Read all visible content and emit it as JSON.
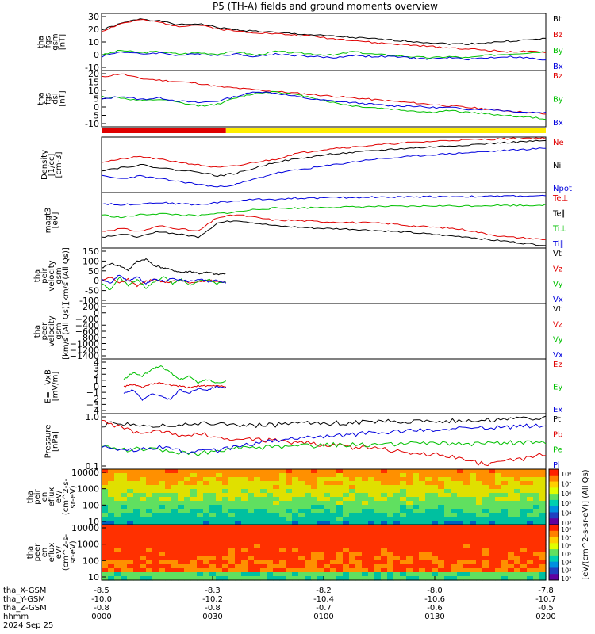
{
  "title": "P5 (TH-A) fields and ground moments overview",
  "colors": {
    "black": "#000000",
    "red": "#e00000",
    "green": "#00c000",
    "blue": "#0000dd",
    "yellow": "#ffee00"
  },
  "chart_data": [
    {
      "type": "line",
      "panel": "fgs-gsm",
      "ylabel": [
        "tha",
        "fgs",
        "gsm",
        "[nT]"
      ],
      "ylim": [
        -10,
        35
      ],
      "ticks": [
        "30",
        "20",
        "10",
        "0",
        "-10"
      ],
      "series": [
        {
          "name": "Bt",
          "color": "black",
          "values": [
            22,
            27,
            31,
            29,
            26,
            27,
            24,
            22,
            21,
            20,
            19,
            18,
            17,
            16,
            15,
            14,
            13,
            12,
            11,
            11,
            12,
            13,
            14,
            15
          ]
        },
        {
          "name": "Bz",
          "color": "red",
          "values": [
            21,
            27,
            30,
            28,
            25,
            26,
            23,
            21,
            20,
            19,
            18,
            17,
            15,
            14,
            12,
            11,
            10,
            9,
            8,
            7,
            6,
            5,
            5,
            4
          ]
        },
        {
          "name": "By",
          "color": "green",
          "values": [
            2,
            6,
            4,
            5,
            3,
            4,
            3,
            5,
            2,
            5,
            4,
            3,
            2,
            5,
            3,
            2,
            1,
            0,
            1,
            0,
            2,
            3,
            4,
            5
          ]
        },
        {
          "name": "Bx",
          "color": "blue",
          "values": [
            1,
            5,
            3,
            4,
            2,
            3,
            2,
            3,
            1,
            3,
            2,
            1,
            0,
            2,
            1,
            1,
            0,
            -1,
            0,
            -1,
            0,
            1,
            0,
            -2
          ]
        }
      ]
    },
    {
      "type": "line",
      "panel": "fgs-dsl",
      "ylabel": [
        "tha",
        "fgs",
        "dsl",
        "[nT]"
      ],
      "ylim": [
        -15,
        20
      ],
      "ticks": [
        "20",
        "15",
        "10",
        "5",
        "0",
        "-5",
        "-10"
      ],
      "series": [
        {
          "name": "Bz",
          "color": "red",
          "values": [
            16,
            18,
            15,
            14,
            13,
            12,
            10,
            9,
            8,
            7,
            6,
            5,
            4,
            3,
            2,
            1,
            0,
            -1,
            -2,
            -3,
            -4,
            -5,
            -6,
            -7
          ]
        },
        {
          "name": "By",
          "color": "green",
          "values": [
            4,
            3,
            1,
            2,
            0,
            -2,
            -1,
            3,
            6,
            7,
            5,
            3,
            0,
            -2,
            -3,
            -4,
            -5,
            -6,
            -5,
            -6,
            -7,
            -8,
            -9,
            -10
          ]
        },
        {
          "name": "Bx",
          "color": "blue",
          "values": [
            2,
            4,
            2,
            3,
            1,
            0,
            1,
            4,
            7,
            6,
            4,
            2,
            1,
            0,
            -1,
            -2,
            -2,
            -3,
            -3,
            -4,
            -4,
            -5,
            -6,
            -6
          ]
        }
      ]
    },
    {
      "type": "line",
      "panel": "density",
      "ylabel": [
        "Density",
        "[1/cc]",
        "[cm-3]"
      ],
      "ylim": [
        0,
        1
      ],
      "ticks": [],
      "series": [
        {
          "name": "Ne",
          "color": "red",
          "values": [
            0.55,
            0.6,
            0.65,
            0.6,
            0.55,
            0.5,
            0.45,
            0.48,
            0.55,
            0.6,
            0.7,
            0.75,
            0.8,
            0.82,
            0.85,
            0.88,
            0.9,
            0.92,
            0.94,
            0.95,
            0.96,
            0.97,
            0.98,
            0.98
          ]
        },
        {
          "name": "Ni",
          "color": "black",
          "values": [
            0.4,
            0.45,
            0.5,
            0.45,
            0.4,
            0.38,
            0.3,
            0.35,
            0.45,
            0.55,
            0.6,
            0.65,
            0.7,
            0.72,
            0.75,
            0.78,
            0.8,
            0.82,
            0.84,
            0.86,
            0.88,
            0.9,
            0.92,
            0.93
          ]
        },
        {
          "name": "Npot",
          "color": "blue",
          "values": [
            0.3,
            0.25,
            0.3,
            0.25,
            0.2,
            0.15,
            0.1,
            0.15,
            0.25,
            0.35,
            0.4,
            0.45,
            0.5,
            0.55,
            0.6,
            0.62,
            0.65,
            0.68,
            0.7,
            0.72,
            0.74,
            0.76,
            0.78,
            0.8
          ]
        }
      ]
    },
    {
      "type": "line",
      "panel": "temperature",
      "ylabel": [
        "magt3",
        "[eV]"
      ],
      "ylim": [
        0,
        1
      ],
      "ticks": [],
      "series": [
        {
          "name": "Te⊥",
          "color": "red",
          "values": [
            0.3,
            0.35,
            0.3,
            0.4,
            0.35,
            0.3,
            0.55,
            0.6,
            0.55,
            0.5,
            0.5,
            0.48,
            0.47,
            0.46,
            0.45,
            0.44,
            0.4,
            0.38,
            0.36,
            0.32,
            0.25,
            0.2,
            0.18,
            0.15
          ]
        },
        {
          "name": "Te∥",
          "color": "black",
          "values": [
            0.2,
            0.25,
            0.2,
            0.3,
            0.25,
            0.2,
            0.45,
            0.5,
            0.45,
            0.4,
            0.38,
            0.36,
            0.35,
            0.34,
            0.32,
            0.3,
            0.28,
            0.25,
            0.22,
            0.2,
            0.15,
            0.12,
            0.08,
            0.05
          ]
        },
        {
          "name": "Ti⊥",
          "color": "green",
          "values": [
            0.6,
            0.55,
            0.6,
            0.62,
            0.6,
            0.58,
            0.62,
            0.65,
            0.7,
            0.72,
            0.72,
            0.73,
            0.74,
            0.74,
            0.75,
            0.75,
            0.75,
            0.76,
            0.76,
            0.76,
            0.77,
            0.77,
            0.77,
            0.78
          ]
        },
        {
          "name": "Ti∥",
          "color": "blue",
          "values": [
            0.8,
            0.78,
            0.8,
            0.82,
            0.8,
            0.78,
            0.82,
            0.85,
            0.88,
            0.88,
            0.9,
            0.9,
            0.91,
            0.91,
            0.92,
            0.92,
            0.92,
            0.93,
            0.93,
            0.93,
            0.93,
            0.94,
            0.94,
            0.94
          ]
        }
      ]
    },
    {
      "type": "line",
      "panel": "peir-velocity",
      "ylabel": [
        "tha",
        "peir",
        "velocity",
        "gsm",
        "[km/s (All Qs)]"
      ],
      "ylim": [
        -100,
        150
      ],
      "ticks": [
        "150",
        "100",
        "50",
        "0",
        "-50",
        "-100"
      ],
      "xfrac": [
        0,
        0.28
      ],
      "series": [
        {
          "name": "Vt",
          "color": "black",
          "values": [
            60,
            80,
            70,
            50,
            90,
            100,
            70,
            60,
            50,
            40,
            45,
            35,
            40,
            30,
            35
          ]
        },
        {
          "name": "Vz",
          "color": "red",
          "values": [
            0,
            20,
            -10,
            10,
            -20,
            0,
            10,
            -5,
            0,
            5,
            -10,
            0,
            5,
            0,
            -5
          ]
        },
        {
          "name": "Vy",
          "color": "green",
          "values": [
            -10,
            -40,
            20,
            -20,
            10,
            -30,
            0,
            20,
            -10,
            10,
            -20,
            0,
            10,
            -10,
            0
          ]
        },
        {
          "name": "Vx",
          "color": "blue",
          "values": [
            10,
            -10,
            30,
            0,
            20,
            -10,
            10,
            0,
            15,
            5,
            0,
            10,
            0,
            5,
            -5
          ]
        }
      ]
    },
    {
      "type": "line",
      "panel": "peer-velocity",
      "ylabel": [
        "tha",
        "peer",
        "velocity",
        "gsm",
        "[km/s (All Qs)]"
      ],
      "ylim": [
        -1400,
        200
      ],
      "ticks": [
        "200",
        "0",
        "−200",
        "−400",
        "−600",
        "−800",
        "−1000",
        "−1200",
        "−1400"
      ],
      "series": [
        {
          "name": "Vt",
          "color": "black",
          "values": []
        },
        {
          "name": "Vz",
          "color": "red",
          "values": []
        },
        {
          "name": "Vy",
          "color": "green",
          "values": []
        },
        {
          "name": "Vx",
          "color": "blue",
          "values": []
        }
      ]
    },
    {
      "type": "line",
      "panel": "efield",
      "ylabel": [
        "E=−VxB",
        "[mV/m]"
      ],
      "ylim": [
        -4,
        4
      ],
      "ticks": [
        "4",
        "3",
        "2",
        "1",
        "0",
        "−1",
        "−2",
        "−3",
        "−4"
      ],
      "xfrac": [
        0.05,
        0.28
      ],
      "series": [
        {
          "name": "Ez",
          "color": "red",
          "values": [
            0,
            0.2,
            -0.1,
            0.3,
            0.5,
            0.2,
            0,
            -0.2,
            0.1,
            0,
            0.1,
            0
          ]
        },
        {
          "name": "Ey",
          "color": "green",
          "values": [
            1,
            2,
            1.5,
            2.5,
            3,
            2,
            1,
            1.5,
            0.5,
            1,
            0.5,
            0.8
          ]
        },
        {
          "name": "Ex",
          "color": "blue",
          "values": [
            -1,
            -0.5,
            -2,
            -1,
            -1.5,
            -2,
            -0.5,
            -1,
            -0.3,
            -0.5,
            0,
            -0.2
          ]
        }
      ]
    },
    {
      "type": "line",
      "panel": "pressure",
      "ylabel": [
        "Pressure",
        "[nPa]"
      ],
      "ylim": [
        0.03,
        1.0
      ],
      "yscale": "log",
      "ticks": [
        "1.0",
        "0.1"
      ],
      "series": [
        {
          "name": "Pt",
          "color": "black",
          "values": [
            0.5,
            0.55,
            0.5,
            0.45,
            0.5,
            0.52,
            0.55,
            0.5,
            0.48,
            0.5,
            0.52,
            0.55,
            0.56,
            0.58,
            0.6,
            0.62,
            0.63,
            0.64,
            0.65,
            0.66,
            0.68,
            0.7,
            0.72,
            0.75
          ]
        },
        {
          "name": "Pb",
          "color": "red",
          "values": [
            0.6,
            0.4,
            0.3,
            0.35,
            0.25,
            0.3,
            0.2,
            0.22,
            0.2,
            0.18,
            0.16,
            0.15,
            0.14,
            0.12,
            0.11,
            0.1,
            0.09,
            0.08,
            0.07,
            0.05,
            0.04,
            0.05,
            0.06,
            0.08
          ]
        },
        {
          "name": "Pe",
          "color": "green",
          "values": [
            0.12,
            0.1,
            0.11,
            0.1,
            0.09,
            0.08,
            0.1,
            0.11,
            0.12,
            0.12,
            0.13,
            0.13,
            0.14,
            0.14,
            0.14,
            0.15,
            0.15,
            0.15,
            0.15,
            0.15,
            0.16,
            0.16,
            0.16,
            0.16
          ]
        },
        {
          "name": "Pi",
          "color": "blue",
          "values": [
            0.12,
            0.11,
            0.1,
            0.12,
            0.1,
            0.09,
            0.1,
            0.12,
            0.15,
            0.18,
            0.2,
            0.22,
            0.25,
            0.27,
            0.3,
            0.32,
            0.34,
            0.36,
            0.38,
            0.4,
            0.42,
            0.44,
            0.46,
            0.48
          ]
        }
      ]
    },
    {
      "type": "heatmap",
      "panel": "peir-en-eflux",
      "ylabel": [
        "tha",
        "peir",
        "en",
        "eflux",
        "eV/",
        "(cm^2-s-",
        "sr-eV)"
      ],
      "ticks": [
        "10000",
        "1000",
        "100",
        "10"
      ]
    },
    {
      "type": "heatmap",
      "panel": "peer-en-eflux",
      "ylabel": [
        "tha",
        "peer",
        "en",
        "eflux",
        "eV/",
        "(cm^2-s-",
        "sr-eV)"
      ],
      "ticks": [
        "10000",
        "1000",
        "100",
        "10"
      ]
    }
  ],
  "legend_labels": {
    "p0": [
      "Bt",
      "Bz",
      "By",
      "Bx"
    ],
    "p1": [
      "Bz",
      "By",
      "Bx"
    ],
    "p2": [
      "Ne",
      "Ni",
      "Npot"
    ],
    "p3": [
      "Te⊥",
      "Te∥",
      "Ti⊥",
      "Ti∥"
    ],
    "p4": [
      "Vt",
      "Vz",
      "Vy",
      "Vx"
    ],
    "p5": [
      "Vt",
      "Vz",
      "Vy",
      "Vx"
    ],
    "p6": [
      "Ez",
      "Ey",
      "Ex"
    ],
    "p7": [
      "Pt",
      "Pb",
      "Pe",
      "Pi"
    ]
  },
  "colorbar": {
    "ticks1": [
      "10⁸",
      "10⁷",
      "10⁶",
      "10⁵",
      "10⁴",
      "10³"
    ],
    "ticks2": [
      "10⁸",
      "10⁷",
      "10⁶",
      "10⁵",
      "10⁴",
      "10³",
      "10²"
    ],
    "unit": "[eV/(cm^2-s-sr-eV)] (All Qs)"
  },
  "xaxis": {
    "row_labels": [
      "tha_X-GSM",
      "tha_Y-GSM",
      "tha_Z-GSM",
      "hhmm",
      "2024 Sep 25"
    ],
    "columns": [
      [
        "-8.5",
        "-10.0",
        "-0.8",
        "0000"
      ],
      [
        "-8.3",
        "-10.2",
        "-0.8",
        "0030"
      ],
      [
        "-8.2",
        "-10.4",
        "-0.7",
        "0100"
      ],
      [
        "-8.0",
        "-10.6",
        "-0.6",
        "0130"
      ],
      [
        "-7.8",
        "-10.7",
        "-0.5",
        "0200"
      ]
    ]
  },
  "mode_bar": {
    "red_fraction": 0.28
  }
}
